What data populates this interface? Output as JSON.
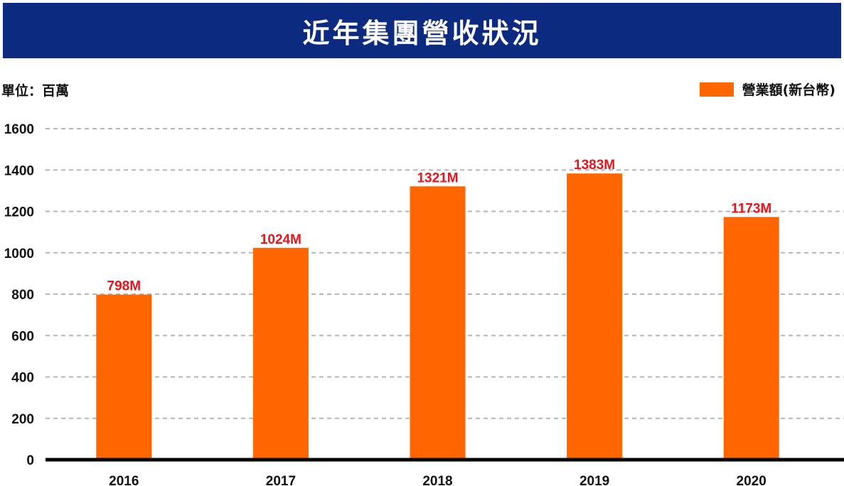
{
  "header": {
    "title": "近年集團營收狀況"
  },
  "unit_label": "單位：百萬",
  "legend": {
    "label": "營業額(新台幣)"
  },
  "colors": {
    "title_bg": "#0b2a80",
    "bar": "#ff6600",
    "data_label": "#e8141c",
    "grid": "#b5b5b5",
    "axis": "#000000"
  },
  "chart_data": {
    "type": "bar",
    "categories": [
      "2016",
      "2017",
      "2018",
      "2019",
      "2020"
    ],
    "series": [
      {
        "name": "營業額(新台幣)",
        "values": [
          798,
          1024,
          1321,
          1383,
          1173
        ]
      }
    ],
    "data_labels": [
      "798M",
      "1024M",
      "1321M",
      "1383M",
      "1173M"
    ],
    "ylim": [
      0,
      1600
    ],
    "yticks": [
      0,
      200,
      400,
      600,
      800,
      1000,
      1200,
      1400,
      1600
    ],
    "grid": true,
    "legend_position": "top-right"
  }
}
